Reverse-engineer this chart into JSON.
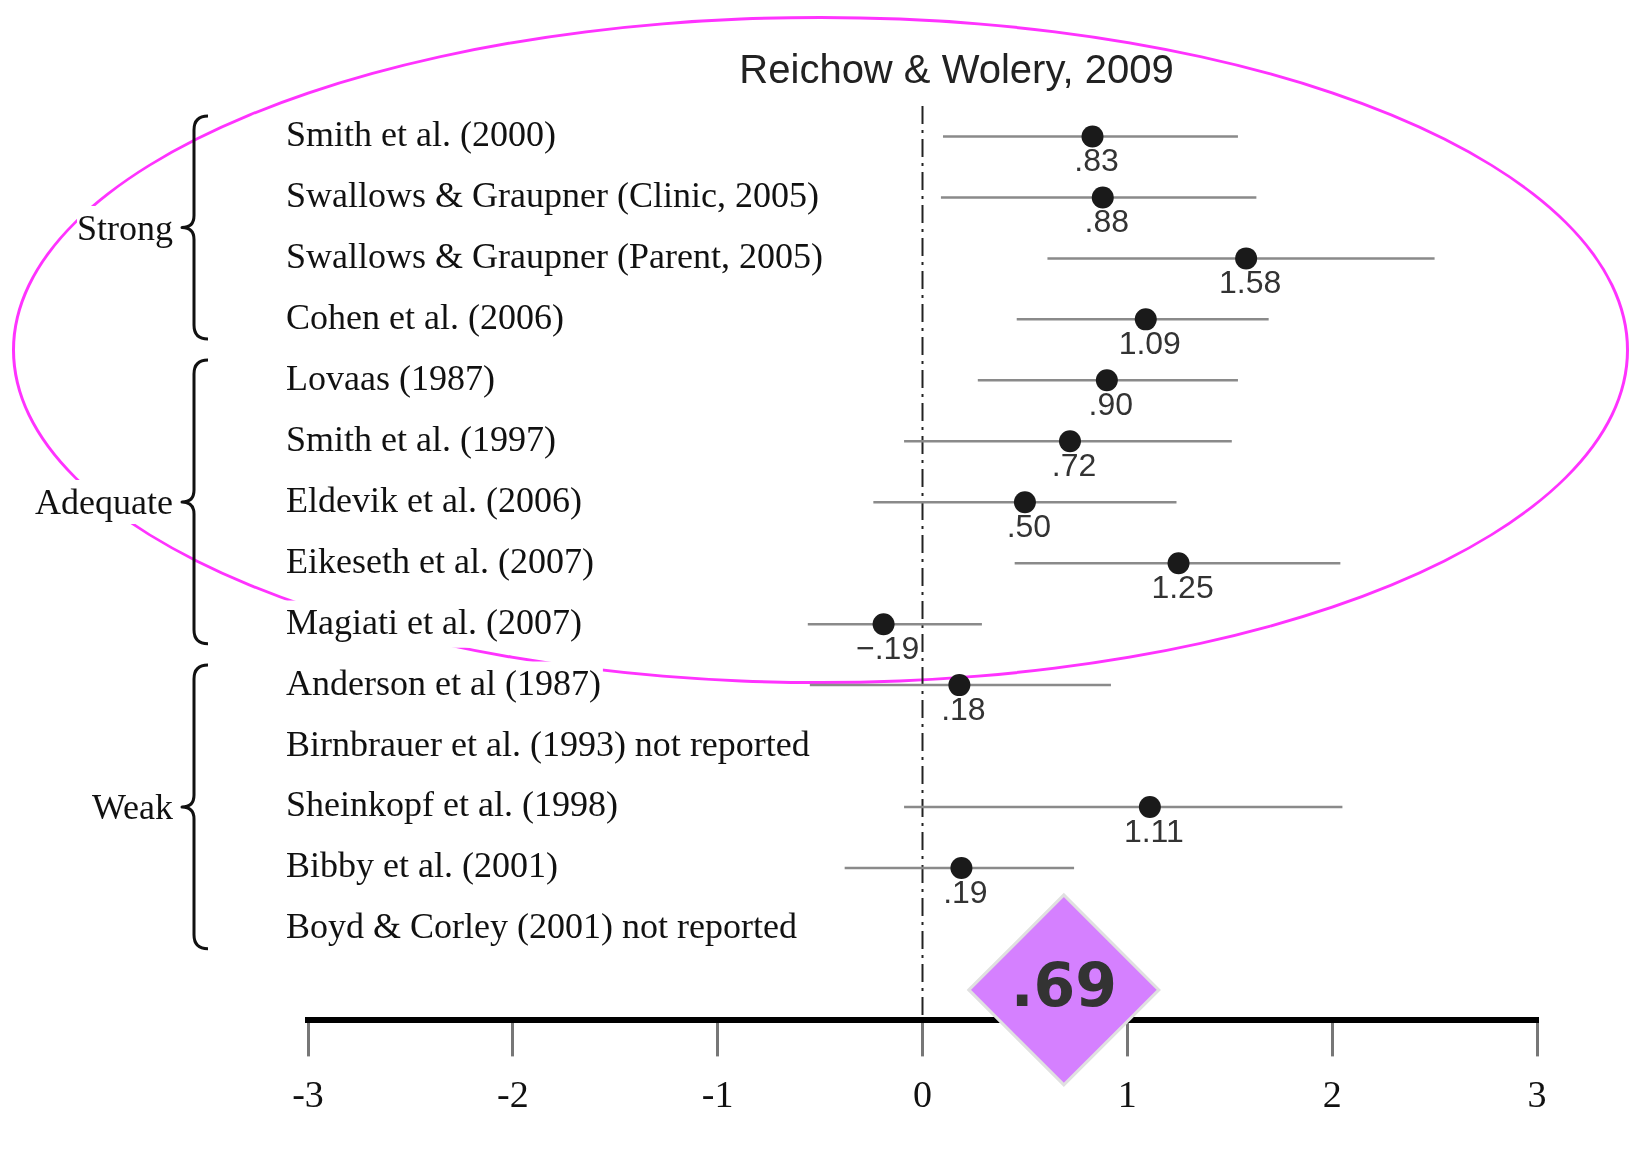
{
  "chart_data": {
    "type": "scatter",
    "orientation": "horizontal",
    "title": "Reichow & Wolery, 2009",
    "categories": [
      "Smith et al. (2000)",
      "Swallows & Graupner (Clinic, 2005)",
      "Swallows & Graupner (Parent, 2005)",
      "Cohen et al. (2006)",
      "Lovaas (1987)",
      "Smith et al. (1997)",
      "Eldevik et al. (2006)",
      "Eikeseth et al. (2007)",
      "Magiati et al. (2007)",
      "Anderson et al (1987)",
      "Birnbrauer et al. (1993) not reported",
      "Sheinkopf et al. (1998)",
      "Bibby et al. (2001)",
      "Boyd & Corley (2001) not reported",
      null
    ],
    "series": [
      {
        "marker": "circle",
        "color": "#1a1a1a",
        "values": [
          0.83,
          0.88,
          1.58,
          1.09,
          0.9,
          0.72,
          0.5,
          1.25,
          -0.19,
          0.18,
          null,
          1.11,
          0.19,
          null,
          null
        ],
        "errors": [
          [
            0.1,
            1.54
          ],
          [
            0.09,
            1.63
          ],
          [
            0.61,
            2.5
          ],
          [
            0.46,
            1.69
          ],
          [
            0.27,
            1.54
          ],
          [
            -0.09,
            1.51
          ],
          [
            -0.24,
            1.24
          ],
          [
            0.45,
            2.04
          ],
          [
            -0.56,
            0.29
          ],
          [
            -0.55,
            0.92
          ],
          null,
          [
            -0.09,
            2.05
          ],
          [
            -0.38,
            0.74
          ],
          null,
          null
        ],
        "value_labels": [
          ".83",
          ".88",
          "1.58",
          "1.09",
          ".90",
          ".72",
          ".50",
          "1.25",
          "−.19",
          ".18",
          null,
          "1.11",
          ".19",
          null,
          null
        ]
      },
      {
        "marker": "diamond",
        "color": "#d580ff",
        "values": [
          null,
          null,
          null,
          null,
          null,
          null,
          null,
          null,
          null,
          null,
          null,
          null,
          null,
          null,
          0.69
        ],
        "value_labels": [
          null,
          null,
          null,
          null,
          null,
          null,
          null,
          null,
          null,
          null,
          null,
          null,
          null,
          null,
          ".69"
        ]
      }
    ],
    "xlim": [
      -3,
      3
    ],
    "xticks": [
      -3,
      -2,
      -1,
      0,
      1,
      2,
      3
    ],
    "grid": false,
    "legend": false,
    "ref_lines": [
      {
        "axis": "x",
        "value": 0,
        "line_style": "dashed",
        "color": "#222222"
      }
    ],
    "annotations": [
      "Strong",
      "Adequate",
      "Weak"
    ]
  }
}
